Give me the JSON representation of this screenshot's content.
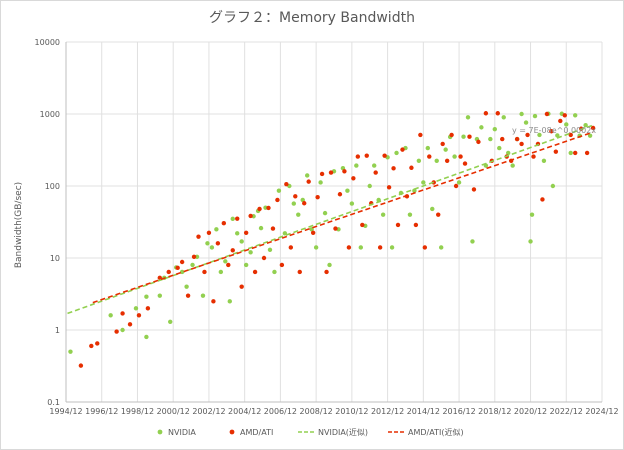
{
  "chart_data": {
    "type": "scatter",
    "title": "グラフ２：Memory Bandwidth",
    "xlabel": "",
    "ylabel": "Bandwidth(GB/sec)",
    "yscale": "log",
    "ylim": [
      0.1,
      10000
    ],
    "y_ticks": [
      "0.1",
      "1",
      "10",
      "100",
      "1000",
      "10000"
    ],
    "x_ticks": [
      "1994/12",
      "1996/12",
      "1998/12",
      "2000/12",
      "2002/12",
      "2004/12",
      "2006/12",
      "2008/12",
      "2010/12",
      "2012/12",
      "2014/12",
      "2016/12",
      "2018/12",
      "2020/12",
      "2022/12",
      "2024/12"
    ],
    "xlim": [
      "1994/12",
      "2024/12"
    ],
    "grid": "both",
    "legend_position": "bottom",
    "annotation": "y = 7E-08e^0.0002x",
    "series": [
      {
        "name": "NVIDIA",
        "marker": "dot",
        "color": "#92d050",
        "points": [
          [
            "1995/03",
            0.5
          ],
          [
            "1997/06",
            1.6
          ],
          [
            "1998/02",
            1.0
          ],
          [
            "1998/11",
            2.0
          ],
          [
            "1999/06",
            2.9
          ],
          [
            "1999/06",
            0.8
          ],
          [
            "2000/03",
            3.0
          ],
          [
            "2000/06",
            5.3
          ],
          [
            "2000/10",
            1.3
          ],
          [
            "2001/02",
            7.4
          ],
          [
            "2001/06",
            6.4
          ],
          [
            "2001/09",
            4.0
          ],
          [
            "2002/01",
            8.0
          ],
          [
            "2002/04",
            10.4
          ],
          [
            "2002/08",
            3.0
          ],
          [
            "2002/11",
            16.0
          ],
          [
            "2003/02",
            14.0
          ],
          [
            "2003/05",
            25.0
          ],
          [
            "2003/08",
            6.4
          ],
          [
            "2003/11",
            9.0
          ],
          [
            "2004/02",
            2.5
          ],
          [
            "2004/04",
            35.0
          ],
          [
            "2004/07",
            22.0
          ],
          [
            "2004/10",
            17.0
          ],
          [
            "2005/01",
            8.0
          ],
          [
            "2005/04",
            12.0
          ],
          [
            "2005/06",
            38.0
          ],
          [
            "2005/09",
            45.0
          ],
          [
            "2005/11",
            26.0
          ],
          [
            "2006/02",
            50.0
          ],
          [
            "2006/05",
            13.0
          ],
          [
            "2006/08",
            6.4
          ],
          [
            "2006/11",
            86.0
          ],
          [
            "2007/03",
            22.0
          ],
          [
            "2007/06",
            100.0
          ],
          [
            "2007/09",
            57.0
          ],
          [
            "2007/12",
            40.0
          ],
          [
            "2008/03",
            64.0
          ],
          [
            "2008/06",
            140.0
          ],
          [
            "2008/09",
            25.0
          ],
          [
            "2008/12",
            14.0
          ],
          [
            "2009/03",
            112.0
          ],
          [
            "2009/06",
            42.0
          ],
          [
            "2009/09",
            8.0
          ],
          [
            "2009/12",
            160.0
          ],
          [
            "2010/03",
            25.0
          ],
          [
            "2010/06",
            177.0
          ],
          [
            "2010/09",
            86.0
          ],
          [
            "2010/12",
            57.0
          ],
          [
            "2011/03",
            192.0
          ],
          [
            "2011/06",
            14.0
          ],
          [
            "2011/09",
            28.0
          ],
          [
            "2011/12",
            100.0
          ],
          [
            "2012/03",
            192.0
          ],
          [
            "2012/06",
            64.0
          ],
          [
            "2012/09",
            40.0
          ],
          [
            "2012/12",
            250.0
          ],
          [
            "2013/03",
            14.0
          ],
          [
            "2013/06",
            288.0
          ],
          [
            "2013/09",
            80.0
          ],
          [
            "2013/12",
            336.0
          ],
          [
            "2014/03",
            40.0
          ],
          [
            "2014/06",
            86.0
          ],
          [
            "2014/09",
            224.0
          ],
          [
            "2014/12",
            112.0
          ],
          [
            "2015/03",
            336.0
          ],
          [
            "2015/06",
            48.0
          ],
          [
            "2015/09",
            224.0
          ],
          [
            "2015/12",
            14.0
          ],
          [
            "2016/03",
            320.0
          ],
          [
            "2016/06",
            480.0
          ],
          [
            "2016/09",
            256.0
          ],
          [
            "2016/12",
            112.0
          ],
          [
            "2017/03",
            484.0
          ],
          [
            "2017/06",
            900.0
          ],
          [
            "2017/09",
            17.0
          ],
          [
            "2017/12",
            448.0
          ],
          [
            "2018/03",
            652.0
          ],
          [
            "2018/06",
            192.0
          ],
          [
            "2018/09",
            448.0
          ],
          [
            "2018/12",
            616.0
          ],
          [
            "2019/03",
            336.0
          ],
          [
            "2019/06",
            900.0
          ],
          [
            "2019/09",
            288.0
          ],
          [
            "2019/12",
            192.0
          ],
          [
            "2020/03",
            448.0
          ],
          [
            "2020/06",
            1000.0
          ],
          [
            "2020/09",
            760.0
          ],
          [
            "2020/12",
            17.0
          ],
          [
            "2021/01",
            40.0
          ],
          [
            "2021/03",
            936.0
          ],
          [
            "2021/06",
            512.0
          ],
          [
            "2021/09",
            224.0
          ],
          [
            "2021/12",
            1008.0
          ],
          [
            "2022/03",
            100.0
          ],
          [
            "2022/06",
            504.0
          ],
          [
            "2022/09",
            1008.0
          ],
          [
            "2022/12",
            716.0
          ],
          [
            "2023/03",
            288.0
          ],
          [
            "2023/06",
            960.0
          ],
          [
            "2023/09",
            500.0
          ],
          [
            "2024/01",
            700.0
          ],
          [
            "2024/04",
            500.0
          ]
        ]
      },
      {
        "name": "AMD/ATI",
        "marker": "dot",
        "color": "#e62e00",
        "points": [
          [
            "1995/10",
            0.32
          ],
          [
            "1996/05",
            0.6
          ],
          [
            "1996/09",
            0.65
          ],
          [
            "1997/10",
            0.95
          ],
          [
            "1998/02",
            1.7
          ],
          [
            "1998/07",
            1.2
          ],
          [
            "1999/01",
            1.6
          ],
          [
            "1999/07",
            2.0
          ],
          [
            "2000/03",
            5.3
          ],
          [
            "2000/09",
            6.4
          ],
          [
            "2001/03",
            7.3
          ],
          [
            "2001/06",
            8.8
          ],
          [
            "2001/10",
            3.0
          ],
          [
            "2002/02",
            10.4
          ],
          [
            "2002/05",
            19.8
          ],
          [
            "2002/09",
            6.4
          ],
          [
            "2002/12",
            22.4
          ],
          [
            "2003/03",
            2.5
          ],
          [
            "2003/06",
            16.0
          ],
          [
            "2003/10",
            30.4
          ],
          [
            "2004/01",
            8.0
          ],
          [
            "2004/04",
            12.8
          ],
          [
            "2004/07",
            35.2
          ],
          [
            "2004/10",
            4.0
          ],
          [
            "2005/01",
            22.4
          ],
          [
            "2005/04",
            38.4
          ],
          [
            "2005/07",
            6.4
          ],
          [
            "2005/10",
            48.0
          ],
          [
            "2006/01",
            10.0
          ],
          [
            "2006/04",
            49.6
          ],
          [
            "2006/07",
            25.6
          ],
          [
            "2006/10",
            64.0
          ],
          [
            "2007/01",
            8.0
          ],
          [
            "2007/04",
            106.0
          ],
          [
            "2007/07",
            14.0
          ],
          [
            "2007/10",
            72.0
          ],
          [
            "2008/01",
            6.4
          ],
          [
            "2008/04",
            57.6
          ],
          [
            "2008/07",
            115.0
          ],
          [
            "2008/10",
            22.4
          ],
          [
            "2009/01",
            70.0
          ],
          [
            "2009/04",
            147.0
          ],
          [
            "2009/07",
            6.4
          ],
          [
            "2009/10",
            153.6
          ],
          [
            "2010/01",
            25.6
          ],
          [
            "2010/04",
            76.8
          ],
          [
            "2010/07",
            160.0
          ],
          [
            "2010/10",
            14.0
          ],
          [
            "2011/01",
            128.0
          ],
          [
            "2011/04",
            256.0
          ],
          [
            "2011/07",
            28.8
          ],
          [
            "2011/10",
            264.0
          ],
          [
            "2012/01",
            57.6
          ],
          [
            "2012/04",
            153.6
          ],
          [
            "2012/07",
            14.0
          ],
          [
            "2012/10",
            264.0
          ],
          [
            "2013/01",
            96.0
          ],
          [
            "2013/04",
            176.0
          ],
          [
            "2013/07",
            28.8
          ],
          [
            "2013/10",
            320.0
          ],
          [
            "2014/01",
            72.0
          ],
          [
            "2014/04",
            179.2
          ],
          [
            "2014/07",
            28.8
          ],
          [
            "2014/10",
            512.0
          ],
          [
            "2015/01",
            14.0
          ],
          [
            "2015/04",
            256.0
          ],
          [
            "2015/07",
            112.0
          ],
          [
            "2015/10",
            40.0
          ],
          [
            "2016/01",
            384.0
          ],
          [
            "2016/04",
            224.0
          ],
          [
            "2016/07",
            512.0
          ],
          [
            "2016/10",
            100.0
          ],
          [
            "2017/01",
            256.0
          ],
          [
            "2017/04",
            204.8
          ],
          [
            "2017/07",
            483.8
          ],
          [
            "2017/10",
            89.6
          ],
          [
            "2018/01",
            410.0
          ],
          [
            "2018/06",
            1024.0
          ],
          [
            "2018/10",
            224.0
          ],
          [
            "2019/02",
            1024.0
          ],
          [
            "2019/05",
            448.0
          ],
          [
            "2019/08",
            256.0
          ],
          [
            "2019/11",
            224.0
          ],
          [
            "2020/03",
            448.0
          ],
          [
            "2020/06",
            384.0
          ],
          [
            "2020/10",
            512.0
          ],
          [
            "2021/02",
            256.0
          ],
          [
            "2021/05",
            384.0
          ],
          [
            "2021/08",
            65.0
          ],
          [
            "2021/11",
            1000.0
          ],
          [
            "2022/02",
            576.0
          ],
          [
            "2022/05",
            300.0
          ],
          [
            "2022/08",
            800.0
          ],
          [
            "2022/11",
            960.0
          ],
          [
            "2023/03",
            512.0
          ],
          [
            "2023/06",
            288.0
          ],
          [
            "2023/10",
            624.0
          ],
          [
            "2024/02",
            288.0
          ],
          [
            "2024/06",
            640.0
          ]
        ]
      },
      {
        "name": "NVIDIA(近似)",
        "type": "trendline",
        "style": "dashed",
        "color": "#92d050",
        "points": [
          [
            "1995/01",
            1.7
          ],
          [
            "2024/06",
            700.0
          ]
        ]
      },
      {
        "name": "AMD/ATI(近似)",
        "type": "trendline",
        "style": "dashed",
        "color": "#e62e00",
        "points": [
          [
            "1996/06",
            2.4
          ],
          [
            "2024/06",
            560.0
          ]
        ]
      }
    ]
  }
}
